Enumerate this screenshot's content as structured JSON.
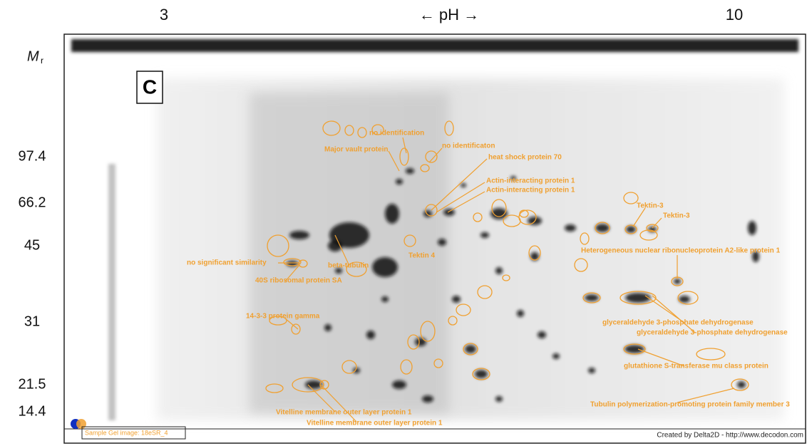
{
  "ph_axis": {
    "left": "3",
    "title": "← pH →",
    "right": "10"
  },
  "mr_axis": {
    "symbol": "M",
    "subscript": "r",
    "labels": [
      "97.4",
      "66.2",
      "45",
      "31",
      "21.5",
      "14.4"
    ]
  },
  "panel_label": "C",
  "annotations": [
    "no identification",
    "Major vault protein",
    "no identificaton",
    "heat shock protein 70",
    "Actin-interacting protein 1",
    "Actin-interacting protein 1",
    "Tektin-3",
    "Tektin-3",
    "Heterogeneous nuclear ribonucleoprotein A2-like protein 1",
    "no significant similarity",
    "beta-tubulin",
    "Tektin 4",
    "40S ribosomal protein SA",
    "14-3-3 protein gamma",
    "glyceraldehyde 3-phosphate dehydrogenase",
    "glyceraldehyde 3-phosphate dehydrogenase",
    "glutathione S-transferase mu class protein",
    "Tubulin polymerization-promoting protein family member 3",
    "Vitelline membrane outer layer protein 1",
    "Vitelline membrane outer layer protein 1"
  ],
  "footer": {
    "sample": "Sample Gel image: 18eSR_4",
    "credit": "Created by Delta2D - http://www.decodon.com"
  }
}
